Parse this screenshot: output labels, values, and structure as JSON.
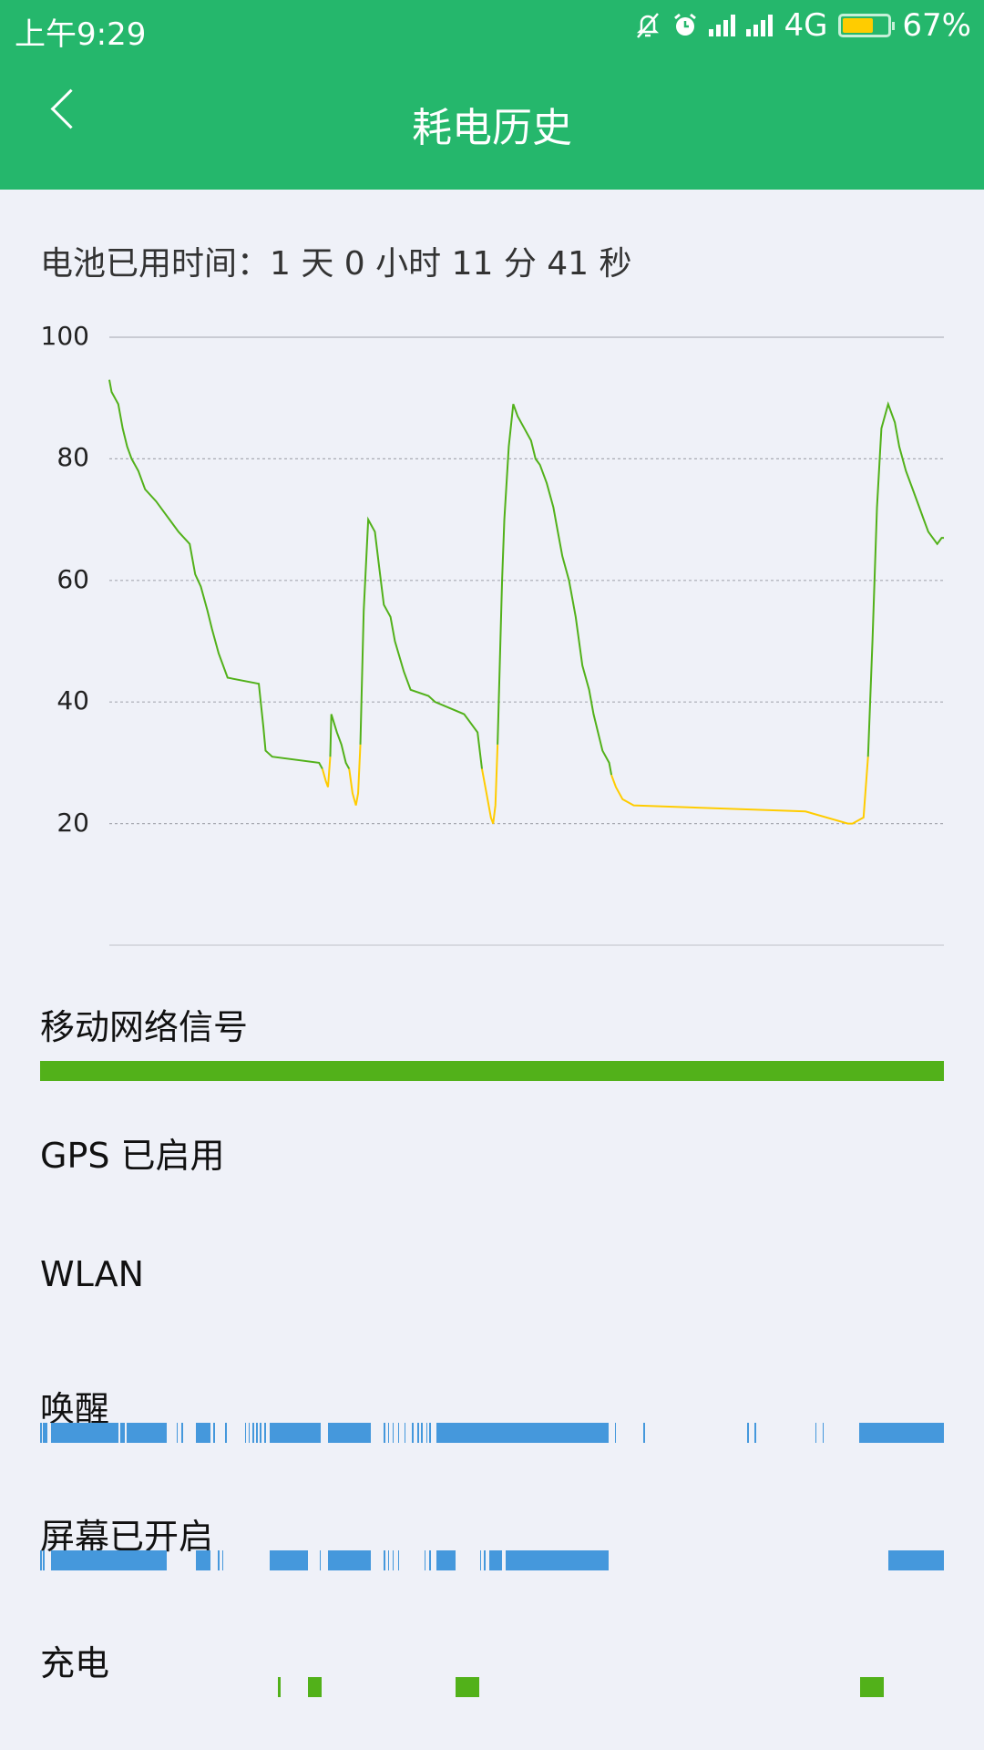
{
  "status_bar": {
    "time": "上午9:29",
    "network": "4G",
    "battery_percent": "67%",
    "battery_level": 0.67,
    "icons": [
      "bell-off-icon",
      "alarm-icon",
      "signal-icon",
      "signal-icon",
      "battery-icon"
    ]
  },
  "header": {
    "title": "耗电历史",
    "back_icon": "chevron-left-icon"
  },
  "usage_text": "电池已用时间：1 天 0 小时 11 分 41 秒",
  "colors": {
    "brand": "#25b76c",
    "line_normal": "#52b11a",
    "line_low": "#ffcc00",
    "timeline_blue": "#4598dc",
    "timeline_green": "#52b11a"
  },
  "chart_data": {
    "type": "line",
    "ylim": [
      0,
      100
    ],
    "yticks": [
      "100",
      "80",
      "60",
      "40",
      "20"
    ],
    "x_unit": "percent of elapsed time",
    "grid": true,
    "segments": [
      {
        "color": "normal",
        "points": [
          [
            0,
            93
          ],
          [
            0.27,
            91
          ],
          [
            1.07,
            89
          ],
          [
            1.6,
            85
          ],
          [
            2.14,
            82
          ],
          [
            2.67,
            80
          ],
          [
            3.48,
            78
          ],
          [
            4.28,
            75
          ],
          [
            5.61,
            73
          ],
          [
            6.68,
            71
          ],
          [
            7.22,
            70
          ],
          [
            8.29,
            68
          ],
          [
            9.63,
            66
          ],
          [
            10.29,
            61
          ],
          [
            10.96,
            59
          ],
          [
            11.76,
            55
          ],
          [
            12.3,
            52
          ],
          [
            13.1,
            48
          ],
          [
            14.17,
            44
          ],
          [
            17.91,
            43
          ],
          [
            18.45,
            36
          ],
          [
            18.72,
            32
          ],
          [
            19.52,
            31
          ],
          [
            25.13,
            30
          ],
          [
            25.53,
            29
          ]
        ]
      },
      {
        "color": "low",
        "points": [
          [
            25.53,
            29
          ],
          [
            25.94,
            27
          ],
          [
            26.2,
            26
          ],
          [
            26.47,
            31
          ]
        ]
      },
      {
        "color": "normal",
        "points": [
          [
            26.47,
            31
          ],
          [
            26.6,
            38
          ],
          [
            27.27,
            35
          ],
          [
            27.81,
            33
          ],
          [
            28.34,
            30
          ],
          [
            28.74,
            29
          ]
        ]
      },
      {
        "color": "low",
        "points": [
          [
            28.74,
            29
          ],
          [
            29.14,
            25
          ],
          [
            29.55,
            23
          ],
          [
            29.81,
            25
          ],
          [
            30.08,
            33
          ]
        ]
      },
      {
        "color": "normal",
        "points": [
          [
            30.08,
            33
          ],
          [
            30.48,
            55
          ],
          [
            31.02,
            70
          ],
          [
            31.82,
            68
          ],
          [
            32.35,
            62
          ],
          [
            32.89,
            56
          ],
          [
            33.69,
            54
          ],
          [
            34.22,
            50
          ],
          [
            35.29,
            45
          ],
          [
            36.1,
            42
          ],
          [
            38.24,
            41
          ],
          [
            39.04,
            40
          ],
          [
            42.51,
            38
          ],
          [
            43.05,
            37
          ],
          [
            44.12,
            35
          ],
          [
            44.65,
            29
          ]
        ]
      },
      {
        "color": "low",
        "points": [
          [
            44.65,
            29
          ],
          [
            45.19,
            25
          ],
          [
            45.72,
            21
          ],
          [
            45.99,
            20
          ],
          [
            46.26,
            23
          ],
          [
            46.52,
            33
          ]
        ]
      },
      {
        "color": "normal",
        "points": [
          [
            46.52,
            33
          ],
          [
            47.06,
            60
          ],
          [
            47.33,
            70
          ],
          [
            47.86,
            82
          ],
          [
            48.4,
            89
          ],
          [
            48.93,
            87
          ],
          [
            49.73,
            85
          ],
          [
            50.53,
            83
          ],
          [
            51.07,
            80
          ],
          [
            51.6,
            79
          ],
          [
            52.41,
            76
          ],
          [
            53.21,
            72
          ],
          [
            53.74,
            68
          ],
          [
            54.28,
            64
          ],
          [
            55.08,
            60
          ],
          [
            55.88,
            54
          ],
          [
            56.68,
            46
          ],
          [
            57.49,
            42
          ],
          [
            58.02,
            38
          ],
          [
            59.09,
            32
          ],
          [
            59.89,
            30
          ],
          [
            60.16,
            28
          ]
        ]
      },
      {
        "color": "low",
        "points": [
          [
            60.16,
            28
          ],
          [
            60.7,
            26
          ],
          [
            61.5,
            24
          ],
          [
            62.83,
            23
          ],
          [
            83.42,
            22
          ],
          [
            88.5,
            20
          ],
          [
            89.04,
            20
          ],
          [
            90.37,
            21
          ],
          [
            90.91,
            31
          ]
        ]
      },
      {
        "color": "normal",
        "points": [
          [
            90.91,
            31
          ],
          [
            91.44,
            50
          ],
          [
            91.98,
            72
          ],
          [
            92.51,
            85
          ],
          [
            93.32,
            89
          ],
          [
            94.12,
            86
          ],
          [
            94.65,
            82
          ],
          [
            95.45,
            78
          ],
          [
            96.26,
            75
          ],
          [
            97.06,
            72
          ],
          [
            97.59,
            70
          ],
          [
            98.13,
            68
          ],
          [
            99.2,
            66
          ],
          [
            99.73,
            67
          ],
          [
            100,
            67
          ]
        ]
      }
    ]
  },
  "timelines": [
    {
      "label": "移动网络信号",
      "color": "green",
      "intervals": [
        [
          0,
          100
        ]
      ]
    },
    {
      "label": "GPS 已启用",
      "color": "blue",
      "intervals": []
    },
    {
      "label": "WLAN",
      "color": "blue",
      "intervals": []
    },
    {
      "label": "唤醒",
      "color": "blue",
      "intervals": [
        [
          0,
          0.2
        ],
        [
          0.35,
          0.83
        ],
        [
          1.25,
          8.69
        ],
        [
          8.9,
          9.38
        ],
        [
          9.59,
          13.97
        ],
        [
          15.08,
          15.22
        ],
        [
          15.64,
          15.78
        ],
        [
          17.23,
          18.83
        ],
        [
          19.11,
          19.32
        ],
        [
          20.5,
          20.71
        ],
        [
          22.65,
          22.79
        ],
        [
          23.07,
          23.21
        ],
        [
          23.49,
          23.63
        ],
        [
          23.9,
          24.04
        ],
        [
          24.32,
          24.46
        ],
        [
          24.81,
          24.95
        ],
        [
          25.36,
          31.06
        ],
        [
          31.9,
          36.62
        ],
        [
          38.01,
          38.15
        ],
        [
          38.5,
          38.64
        ],
        [
          38.99,
          39.12
        ],
        [
          39.61,
          39.75
        ],
        [
          40.31,
          40.45
        ],
        [
          41.14,
          41.28
        ],
        [
          41.77,
          41.9
        ],
        [
          42.18,
          42.32
        ],
        [
          42.74,
          42.88
        ],
        [
          43.09,
          43.22
        ],
        [
          43.85,
          62.89
        ],
        [
          63.59,
          63.72
        ],
        [
          66.78,
          66.92
        ],
        [
          78.25,
          78.39
        ],
        [
          79.08,
          79.22
        ],
        [
          85.75,
          85.89
        ],
        [
          86.59,
          86.73
        ],
        [
          90.62,
          100
        ]
      ]
    },
    {
      "label": "屏幕已开启",
      "color": "blue",
      "intervals": [
        [
          0,
          0.2
        ],
        [
          0.35,
          0.5
        ],
        [
          1.25,
          13.97
        ],
        [
          17.23,
          18.83
        ],
        [
          19.67,
          19.81
        ],
        [
          20.15,
          20.29
        ],
        [
          25.36,
          29.67
        ],
        [
          30.92,
          31.06
        ],
        [
          31.9,
          36.62
        ],
        [
          38.01,
          38.15
        ],
        [
          38.5,
          38.64
        ],
        [
          38.99,
          39.12
        ],
        [
          39.61,
          39.75
        ],
        [
          42.53,
          42.67
        ],
        [
          43.09,
          43.22
        ],
        [
          43.85,
          46.0
        ],
        [
          48.64,
          48.78
        ],
        [
          49.13,
          49.27
        ],
        [
          49.69,
          51.08
        ],
        [
          51.49,
          62.89
        ],
        [
          93.88,
          100
        ]
      ]
    },
    {
      "label": "充电",
      "color": "green",
      "intervals": [
        [
          26.27,
          26.62
        ],
        [
          29.6,
          31.13
        ],
        [
          46.0,
          48.57
        ],
        [
          90.76,
          93.33
        ]
      ]
    }
  ]
}
